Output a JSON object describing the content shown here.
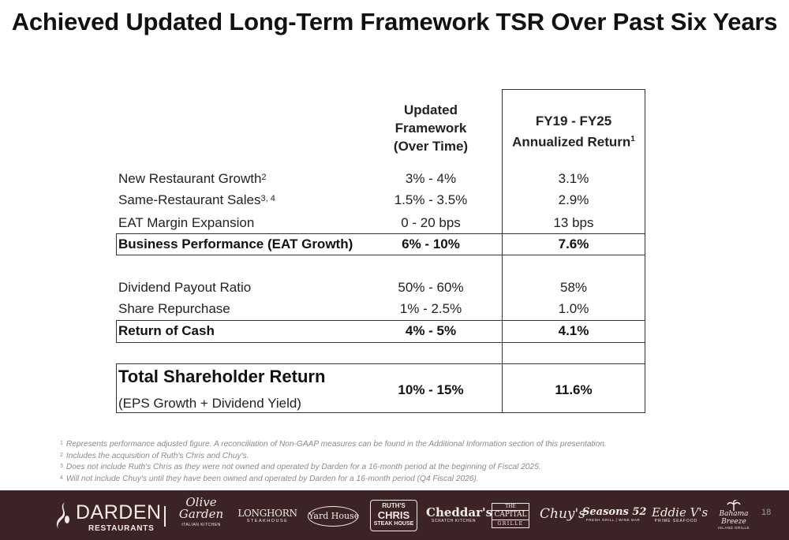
{
  "title": "Achieved Updated Long-Term Framework TSR Over Past Six Years",
  "table": {
    "col1_header": [
      "Updated",
      "Framework",
      "(Over Time)"
    ],
    "col2_header": [
      "FY19 - FY25",
      "Annualized Return"
    ],
    "col2_header_sup": "1",
    "rows": [
      {
        "label": "New Restaurant Growth",
        "sup": "2",
        "col1": "3% - 4%",
        "col2": "3.1%"
      },
      {
        "label": "Same-Restaurant Sales",
        "sup": "3, 4",
        "col1": "1.5% - 3.5%",
        "col2": "2.9%"
      },
      {
        "label": "EAT Margin Expansion",
        "sup": "",
        "col1": "0 - 20 bps",
        "col2": "13 bps"
      },
      {
        "label": "Business Performance (EAT Growth)",
        "sup": "",
        "col1": "6% - 10%",
        "col2": "7.6%"
      },
      {
        "label": "Dividend Payout Ratio",
        "sup": "",
        "col1": "50% - 60%",
        "col2": "58%"
      },
      {
        "label": "Share Repurchase",
        "sup": "",
        "col1": "1% - 2.5%",
        "col2": "1.0%"
      },
      {
        "label": "Return of Cash",
        "sup": "",
        "col1": "4% - 5%",
        "col2": "4.1%"
      }
    ],
    "tsr": {
      "label": "Total Shareholder Return",
      "sublabel": "(EPS Growth + Dividend Yield)",
      "col1": "10% - 15%",
      "col2": "11.6%"
    }
  },
  "footnotes": [
    {
      "num": "1",
      "text": "Represents performance adjusted figure. A reconciliation of Non-GAAP measures can be found in the Additional Information section of this presentation."
    },
    {
      "num": "2",
      "text": "Includes the acquisition of Ruth's Chris and Chuy's."
    },
    {
      "num": "3",
      "text": "Does not include Ruth's Chris as they were not owned and operated by Darden for a 16-month period at the beginning of Fiscal 2025."
    },
    {
      "num": "4",
      "text": "Will not include Chuy's until they have been owned and operated by Darden for a 16-month period (Q4 Fiscal 2026)."
    }
  ],
  "footer": {
    "company": "DARDEN",
    "company_sub": "RESTAURANTS",
    "brands": {
      "olive_garden": [
        "Olive",
        "Garden",
        "ITALIAN KITCHEN"
      ],
      "longhorn": [
        "LONGHORN",
        "STEAKHOUSE"
      ],
      "yard_house": "Yard House",
      "ruths_chris": [
        "RUTH'S",
        "CHRIS",
        "STEAK HOUSE"
      ],
      "cheddars": [
        "Cheddar's",
        "SCRATCH KITCHEN"
      ],
      "capital_grille": [
        "THE",
        "CAPITAL",
        "GRILLE"
      ],
      "chuys": "Chuy's",
      "seasons52": [
        "Seasons 52",
        "FRESH GRILL | WINE BAR"
      ],
      "eddie_vs": [
        "Eddie V's",
        "PRIME SEAFOOD"
      ],
      "bahama_breeze": [
        "Bahama",
        "Breeze",
        "ISLAND GRILLE"
      ]
    },
    "page_number": "18"
  },
  "colors": {
    "footer_bg": "#3b2326",
    "text": "#1a1a1a",
    "footnote": "#8a8a8a"
  }
}
